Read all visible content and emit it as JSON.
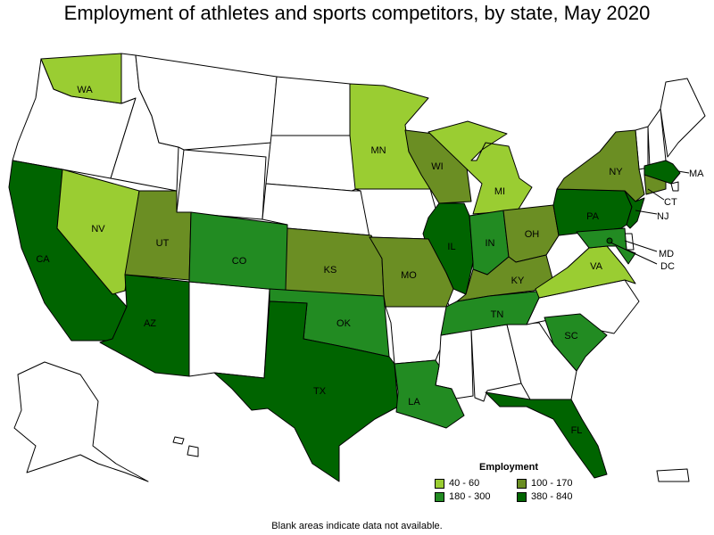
{
  "title": "Employment of athletes and sports competitors, by state, May 2020",
  "footnote": "Blank areas indicate data not available.",
  "legend": {
    "title": "Employment",
    "items": [
      {
        "label": "40 - 60",
        "color": "#9acd32"
      },
      {
        "label": "100 - 170",
        "color": "#6b8e23"
      },
      {
        "label": "180 - 300",
        "color": "#228b22"
      },
      {
        "label": "380 - 840",
        "color": "#006400"
      }
    ]
  },
  "states": {
    "WA": {
      "label": "WA",
      "bin": "40 - 60"
    },
    "NV": {
      "label": "NV",
      "bin": "40 - 60"
    },
    "MN": {
      "label": "MN",
      "bin": "40 - 60"
    },
    "MI": {
      "label": "MI",
      "bin": "40 - 60"
    },
    "VA": {
      "label": "VA",
      "bin": "40 - 60"
    },
    "UT": {
      "label": "UT",
      "bin": "100 - 170"
    },
    "KS": {
      "label": "KS",
      "bin": "100 - 170"
    },
    "WI": {
      "label": "WI",
      "bin": "100 - 170"
    },
    "MO": {
      "label": "MO",
      "bin": "100 - 170"
    },
    "OH": {
      "label": "OH",
      "bin": "100 - 170"
    },
    "KY": {
      "label": "KY",
      "bin": "100 - 170"
    },
    "NY": {
      "label": "NY",
      "bin": "100 - 170"
    },
    "CT": {
      "label": "CT",
      "bin": "100 - 170"
    },
    "CO": {
      "label": "CO",
      "bin": "180 - 300"
    },
    "OK": {
      "label": "OK",
      "bin": "180 - 300"
    },
    "LA": {
      "label": "LA",
      "bin": "180 - 300"
    },
    "IN": {
      "label": "IN",
      "bin": "180 - 300"
    },
    "TN": {
      "label": "TN",
      "bin": "180 - 300"
    },
    "SC": {
      "label": "SC",
      "bin": "180 - 300"
    },
    "MD": {
      "label": "MD",
      "bin": "180 - 300"
    },
    "CA": {
      "label": "CA",
      "bin": "380 - 840"
    },
    "AZ": {
      "label": "AZ",
      "bin": "380 - 840"
    },
    "TX": {
      "label": "TX",
      "bin": "380 - 840"
    },
    "IL": {
      "label": "IL",
      "bin": "380 - 840"
    },
    "FL": {
      "label": "FL",
      "bin": "380 - 840"
    },
    "PA": {
      "label": "PA",
      "bin": "380 - 840"
    },
    "NJ": {
      "label": "NJ",
      "bin": "380 - 840"
    },
    "MA": {
      "label": "MA",
      "bin": "380 - 840"
    },
    "DC": {
      "label": "DC",
      "bin": "380 - 840"
    }
  }
}
